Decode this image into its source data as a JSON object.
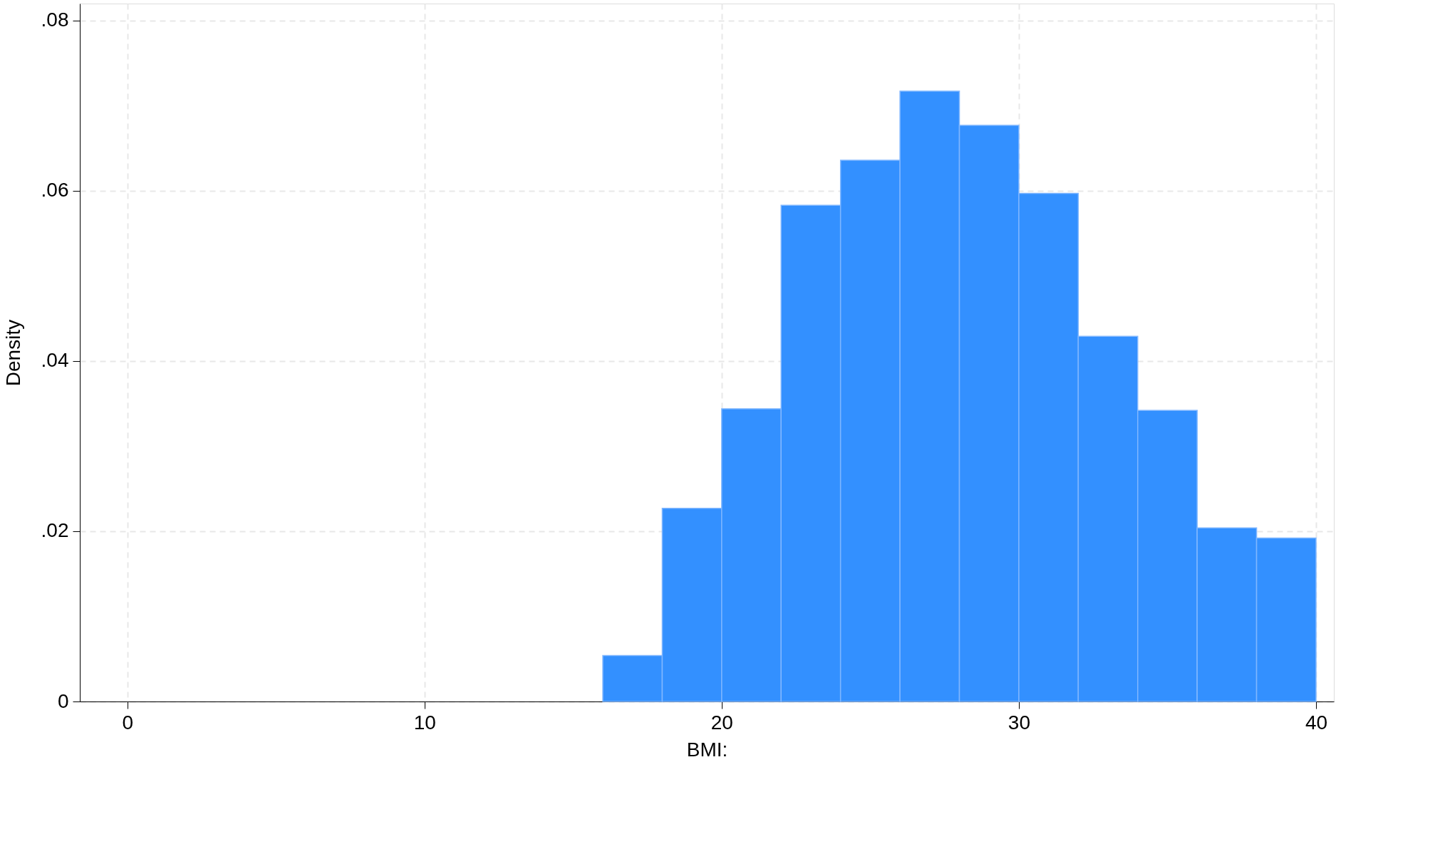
{
  "chart_data": {
    "type": "histogram",
    "xlabel": "BMI:",
    "ylabel": "Density",
    "bins": [
      16,
      18,
      20,
      22,
      24,
      26,
      28,
      30,
      32,
      34,
      36,
      38,
      40
    ],
    "values": [
      0.0054,
      0.0227,
      0.0344,
      0.0583,
      0.0636,
      0.0717,
      0.0677,
      0.0597,
      0.0429,
      0.0342,
      0.0204,
      0.0192
    ],
    "color": "#3390ff",
    "xlim": [
      -1.6,
      40.6
    ],
    "xticks": [
      0,
      10,
      20,
      30,
      40
    ],
    "ylim": [
      0,
      0.082
    ],
    "yticks": [
      0,
      {
        "value": 0.02,
        "label": ".02"
      },
      {
        "value": 0.04,
        "label": ".04"
      },
      {
        "value": 0.06,
        "label": ".06"
      },
      {
        "value": 0.08,
        "label": ".08"
      }
    ],
    "grid": true
  }
}
